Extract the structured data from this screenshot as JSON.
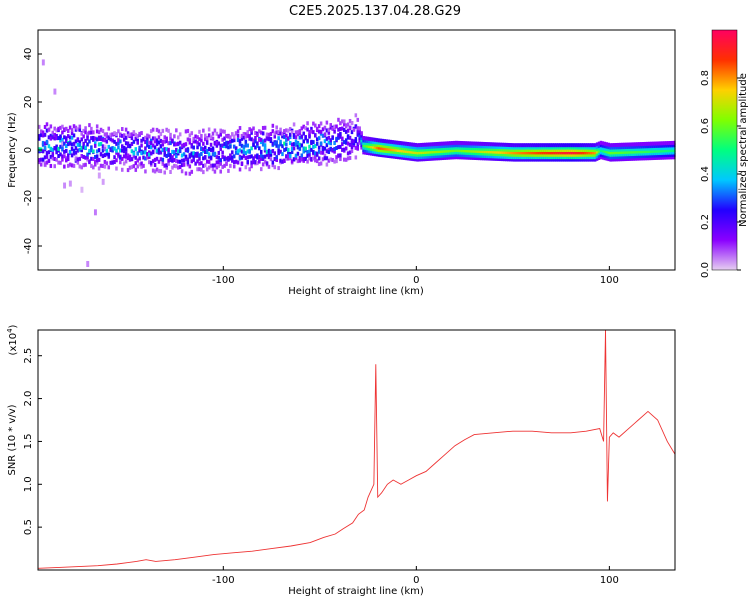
{
  "title": "C2E5.2025.137.04.28.G29",
  "chart_data": [
    {
      "type": "heatmap",
      "xlabel": "Height of straight line (km)",
      "ylabel": "Frequency (Hz)",
      "xlim": [
        -196,
        134
      ],
      "ylim": [
        -50,
        50
      ],
      "xticks": [
        -100,
        0,
        100
      ],
      "yticks": [
        -40,
        -20,
        0,
        20,
        40
      ],
      "colorbar": {
        "label": "Normalized spectral amplitude",
        "range": [
          0,
          1
        ],
        "ticks": [
          "0.0",
          "0.2",
          "0.4",
          "0.6",
          "0.8"
        ],
        "colormap": [
          "#e6cff0",
          "#8a00ff",
          "#2200ff",
          "#00c8ff",
          "#00ff80",
          "#80ff00",
          "#ffd000",
          "#ff3000",
          "#ff0060"
        ]
      },
      "ridge": {
        "x": [
          -196,
          -180,
          -160,
          -140,
          -120,
          -100,
          -80,
          -60,
          -45,
          -35,
          -30,
          -28,
          -20,
          -10,
          0,
          20,
          50,
          80,
          92,
          95,
          100,
          134
        ],
        "freq": [
          2,
          2,
          1,
          0,
          -1,
          0,
          1,
          2,
          3,
          5,
          6,
          2,
          1,
          0,
          -1,
          0,
          -1,
          -1,
          -1,
          0,
          -1,
          0
        ],
        "amplitude": [
          0.35,
          0.35,
          0.3,
          0.3,
          0.3,
          0.3,
          0.35,
          0.35,
          0.3,
          0.25,
          0.3,
          0.55,
          0.85,
          0.75,
          0.7,
          0.6,
          0.8,
          0.95,
          0.8,
          0.5,
          0.6,
          0.5
        ]
      }
    },
    {
      "type": "line",
      "xlabel": "Height of straight line (km)",
      "ylabel": "SNR (10 * v/v)",
      "multiplier": "(x10",
      "multiplier_exp": "4",
      "multiplier_close": ")",
      "xlim": [
        -196,
        134
      ],
      "ylim": [
        0,
        2.8
      ],
      "xticks": [
        -100,
        0,
        100
      ],
      "yticks": [
        "0.5",
        "1.0",
        "1.5",
        "2.0",
        "2.5"
      ],
      "color": "#ee3333",
      "series": [
        {
          "x": [
            -196,
            -185,
            -175,
            -165,
            -155,
            -145,
            -140,
            -135,
            -125,
            -115,
            -105,
            -95,
            -85,
            -75,
            -65,
            -55,
            -48,
            -42,
            -38,
            -33,
            -30,
            -27,
            -25,
            -22,
            -21,
            -20,
            -18,
            -15,
            -12,
            -8,
            -4,
            0,
            5,
            10,
            15,
            20,
            25,
            30,
            40,
            50,
            60,
            70,
            80,
            88,
            95,
            97,
            98,
            99,
            100,
            102,
            105,
            110,
            115,
            120,
            125,
            130,
            134
          ],
          "y": [
            0.02,
            0.03,
            0.04,
            0.05,
            0.07,
            0.1,
            0.12,
            0.1,
            0.12,
            0.15,
            0.18,
            0.2,
            0.22,
            0.25,
            0.28,
            0.32,
            0.38,
            0.42,
            0.48,
            0.55,
            0.65,
            0.7,
            0.85,
            1.0,
            2.4,
            0.85,
            0.9,
            1.0,
            1.05,
            1.0,
            1.05,
            1.1,
            1.15,
            1.25,
            1.35,
            1.45,
            1.52,
            1.58,
            1.6,
            1.62,
            1.62,
            1.6,
            1.6,
            1.62,
            1.65,
            1.5,
            2.8,
            0.8,
            1.55,
            1.6,
            1.55,
            1.65,
            1.75,
            1.85,
            1.75,
            1.5,
            1.35
          ]
        }
      ]
    }
  ]
}
